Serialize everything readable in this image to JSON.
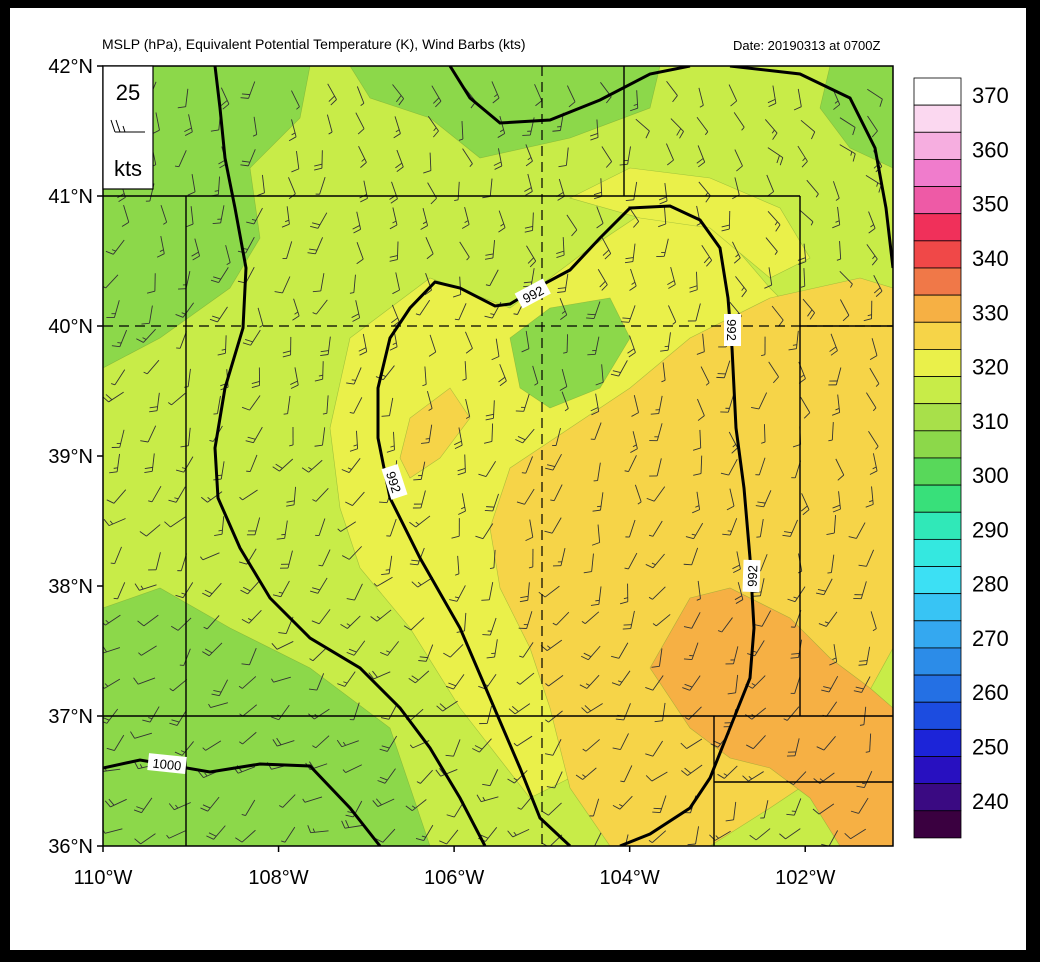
{
  "map": {
    "title": "MSLP (hPa), Equivalent Potential Temperature (K), Wind Barbs (kts)",
    "date_label": "Date: 20190313 at 0700Z",
    "lat_ticks": [
      "42°N",
      "41°N",
      "40°N",
      "39°N",
      "38°N",
      "37°N",
      "36°N"
    ],
    "lon_ticks": [
      "110°W",
      "108°W",
      "106°W",
      "104°W",
      "102°W"
    ],
    "lat_range": [
      36,
      42
    ],
    "lon_range": [
      -110,
      -101
    ],
    "barb_key": {
      "value": "25",
      "unit": "kts"
    },
    "isobar_labels": [
      "992",
      "992",
      "992",
      "992",
      "1000"
    ],
    "isobar_levels_hpa": [
      992,
      1000
    ]
  },
  "colorbar": {
    "unit": "K",
    "labels": [
      "370",
      "360",
      "350",
      "340",
      "330",
      "320",
      "310",
      "300",
      "290",
      "280",
      "270",
      "260",
      "250",
      "240"
    ],
    "colors": [
      "#ffffff",
      "#fbd8f0",
      "#f6aee0",
      "#f07ccc",
      "#ee5aa6",
      "#f0305a",
      "#f04848",
      "#f07848",
      "#f6b044",
      "#f6d448",
      "#eaf04a",
      "#c8ec48",
      "#a8e04a",
      "#8cd84a",
      "#58d85a",
      "#38e07a",
      "#30e8b8",
      "#34e8e0",
      "#3ce0f4",
      "#38c4f4",
      "#34a8f0",
      "#2c8ce8",
      "#2470e4",
      "#1c4ce0",
      "#1c24d8",
      "#2810c0",
      "#3a0a82",
      "#3a0040"
    ]
  },
  "theta_e_fill_colors": {
    "low": "#8cd84a",
    "mid_low": "#a8e04a",
    "mid": "#c8ec48",
    "mid_high": "#eaf04a",
    "high": "#f6d448",
    "max": "#f6b044",
    "cool": "#58d85a"
  }
}
